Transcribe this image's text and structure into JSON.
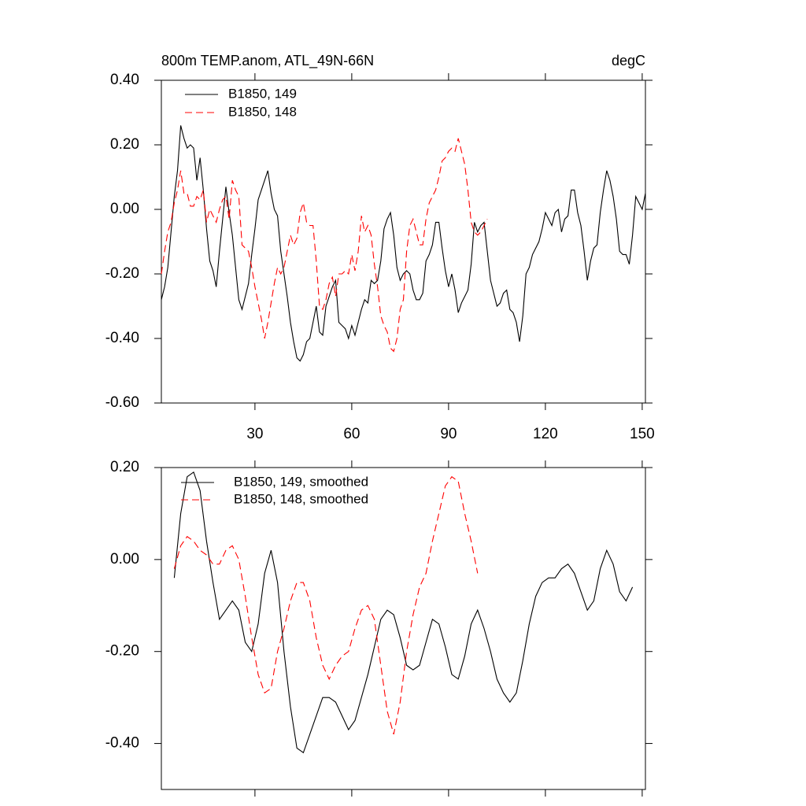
{
  "chart_data": [
    {
      "type": "line",
      "title": "800m TEMP.anom, ATL_49N-66N",
      "units_label": "degC",
      "xlim": [
        1,
        151
      ],
      "ylim": [
        -0.6,
        0.4
      ],
      "xticks": [
        30,
        60,
        90,
        120,
        150
      ],
      "yticks": [
        {
          "value": -0.6,
          "label": "-0.60"
        },
        {
          "value": -0.4,
          "label": "-0.40"
        },
        {
          "value": -0.2,
          "label": "-0.20"
        },
        {
          "value": 0,
          "label": "0.00"
        },
        {
          "value": 0.2,
          "label": "0.20"
        },
        {
          "value": 0.4,
          "label": "0.40"
        }
      ],
      "x": [
        1,
        2,
        3,
        4,
        5,
        6,
        7,
        8,
        9,
        10,
        11,
        12,
        13,
        14,
        15,
        16,
        17,
        18,
        19,
        20,
        21,
        22,
        23,
        24,
        25,
        26,
        27,
        28,
        29,
        30,
        31,
        32,
        33,
        34,
        35,
        36,
        37,
        38,
        39,
        40,
        41,
        42,
        43,
        44,
        45,
        46,
        47,
        48,
        49,
        50,
        51,
        52,
        53,
        54,
        55,
        56,
        57,
        58,
        59,
        60,
        61,
        62,
        63,
        64,
        65,
        66,
        67,
        68,
        69,
        70,
        71,
        72,
        73,
        74,
        75,
        76,
        77,
        78,
        79,
        80,
        81,
        82,
        83,
        84,
        85,
        86,
        87,
        88,
        89,
        90,
        91,
        92,
        93,
        94,
        95,
        96,
        97,
        98,
        99,
        100,
        101,
        102,
        103,
        104,
        105,
        106,
        107,
        108,
        109,
        110,
        111,
        112,
        113,
        114,
        115,
        116,
        117,
        118,
        119,
        120,
        121,
        122,
        123,
        124,
        125,
        126,
        127,
        128,
        129,
        130,
        131,
        132,
        133,
        134,
        135,
        136,
        137,
        138,
        139,
        140,
        141,
        142,
        143,
        144,
        145,
        146,
        147,
        148,
        149,
        150,
        151
      ],
      "series": [
        {
          "name": "B1850, 149",
          "color": "#000000",
          "dash": false,
          "values": [
            -0.28,
            -0.24,
            -0.18,
            -0.07,
            0.04,
            0.12,
            0.26,
            0.22,
            0.19,
            0.2,
            0.19,
            0.09,
            0.16,
            0.06,
            -0.06,
            -0.16,
            -0.19,
            -0.24,
            -0.13,
            -0.03,
            0.07,
            -0.01,
            -0.08,
            -0.18,
            -0.28,
            -0.31,
            -0.27,
            -0.23,
            -0.14,
            -0.06,
            0.03,
            0.06,
            0.09,
            0.12,
            0.05,
            0.0,
            -0.02,
            -0.13,
            -0.2,
            -0.27,
            -0.35,
            -0.41,
            -0.46,
            -0.47,
            -0.45,
            -0.41,
            -0.4,
            -0.35,
            -0.3,
            -0.38,
            -0.39,
            -0.3,
            -0.27,
            -0.24,
            -0.22,
            -0.35,
            -0.36,
            -0.37,
            -0.4,
            -0.36,
            -0.39,
            -0.35,
            -0.31,
            -0.28,
            -0.29,
            -0.22,
            -0.23,
            -0.22,
            -0.16,
            -0.06,
            -0.03,
            -0.01,
            -0.08,
            -0.18,
            -0.22,
            -0.2,
            -0.19,
            -0.2,
            -0.25,
            -0.28,
            -0.28,
            -0.26,
            -0.16,
            -0.14,
            -0.11,
            -0.04,
            -0.04,
            -0.12,
            -0.19,
            -0.24,
            -0.2,
            -0.25,
            -0.32,
            -0.29,
            -0.27,
            -0.25,
            -0.17,
            -0.04,
            -0.07,
            -0.05,
            -0.04,
            -0.13,
            -0.22,
            -0.26,
            -0.3,
            -0.29,
            -0.26,
            -0.25,
            -0.31,
            -0.32,
            -0.35,
            -0.41,
            -0.33,
            -0.2,
            -0.18,
            -0.14,
            -0.12,
            -0.1,
            -0.06,
            -0.01,
            -0.03,
            -0.05,
            -0.01,
            0.0,
            -0.07,
            -0.03,
            -0.02,
            0.06,
            0.06,
            -0.01,
            -0.05,
            -0.13,
            -0.22,
            -0.16,
            -0.12,
            -0.11,
            -0.01,
            0.06,
            0.12,
            0.09,
            0.04,
            -0.03,
            -0.13,
            -0.14,
            -0.14,
            -0.17,
            -0.08,
            0.04,
            0.02,
            0.0,
            0.05
          ]
        },
        {
          "name": "B1850, 148",
          "color": "#ff0000",
          "dash": true,
          "values": [
            -0.2,
            -0.13,
            -0.07,
            -0.04,
            0.02,
            0.06,
            0.12,
            0.05,
            0.05,
            0.01,
            0.01,
            0.04,
            0.03,
            0.06,
            -0.04,
            0.0,
            -0.02,
            -0.04,
            0.0,
            0.03,
            0.04,
            -0.03,
            0.09,
            0.06,
            0.04,
            -0.11,
            -0.12,
            -0.13,
            -0.18,
            -0.24,
            -0.29,
            -0.34,
            -0.4,
            -0.35,
            -0.29,
            -0.23,
            -0.18,
            -0.2,
            -0.18,
            -0.13,
            -0.08,
            -0.11,
            -0.09,
            -0.01,
            0.02,
            -0.04,
            -0.05,
            -0.05,
            -0.16,
            -0.3,
            -0.31,
            -0.28,
            -0.23,
            -0.21,
            -0.27,
            -0.2,
            -0.2,
            -0.19,
            -0.2,
            -0.14,
            -0.19,
            -0.13,
            -0.02,
            -0.07,
            -0.05,
            -0.08,
            -0.17,
            -0.24,
            -0.33,
            -0.36,
            -0.38,
            -0.43,
            -0.44,
            -0.4,
            -0.31,
            -0.28,
            -0.13,
            -0.05,
            -0.03,
            -0.07,
            -0.11,
            -0.11,
            -0.03,
            0.02,
            0.04,
            0.06,
            0.1,
            0.15,
            0.16,
            0.18,
            0.19,
            0.18,
            0.22,
            0.18,
            0.14,
            0.06,
            -0.04,
            -0.07,
            -0.08,
            -0.07,
            -0.05,
            -0.03,
            null,
            null,
            null,
            null,
            null,
            null,
            null,
            null,
            null,
            null,
            null,
            null,
            null,
            null,
            null,
            null,
            null,
            null,
            null,
            null,
            null,
            null,
            null,
            null,
            null,
            null,
            null,
            null,
            null,
            null,
            null,
            null,
            null,
            null,
            null,
            null,
            null,
            null,
            null,
            null,
            null,
            null,
            null,
            null,
            null,
            null,
            null,
            null,
            null
          ]
        }
      ]
    },
    {
      "type": "line",
      "xlim": [
        1,
        151
      ],
      "ylim": [
        -0.5,
        0.2
      ],
      "xticks": [
        30,
        60,
        90,
        120,
        150
      ],
      "yticks": [
        {
          "value": -0.4,
          "label": "-0.40"
        },
        {
          "value": -0.2,
          "label": "-0.20"
        },
        {
          "value": 0,
          "label": "0.00"
        },
        {
          "value": 0.2,
          "label": "0.20"
        }
      ],
      "x": [
        5,
        7,
        9,
        11,
        13,
        15,
        17,
        19,
        21,
        23,
        25,
        27,
        29,
        31,
        33,
        35,
        37,
        39,
        41,
        43,
        45,
        47,
        49,
        51,
        53,
        55,
        57,
        59,
        61,
        63,
        65,
        67,
        69,
        71,
        73,
        75,
        77,
        79,
        81,
        83,
        85,
        87,
        89,
        91,
        93,
        95,
        97,
        99,
        101,
        103,
        105,
        107,
        109,
        111,
        113,
        115,
        117,
        119,
        121,
        123,
        125,
        127,
        129,
        131,
        133,
        135,
        137,
        139,
        141,
        143,
        145,
        147
      ],
      "series": [
        {
          "name": "B1850, 149, smoothed",
          "color": "#000000",
          "dash": false,
          "values": [
            -0.04,
            0.1,
            0.18,
            0.19,
            0.15,
            0.04,
            -0.05,
            -0.13,
            -0.11,
            -0.09,
            -0.11,
            -0.18,
            -0.2,
            -0.14,
            -0.03,
            0.02,
            -0.05,
            -0.2,
            -0.32,
            -0.41,
            -0.42,
            -0.38,
            -0.34,
            -0.3,
            -0.3,
            -0.31,
            -0.34,
            -0.37,
            -0.35,
            -0.3,
            -0.25,
            -0.19,
            -0.13,
            -0.11,
            -0.12,
            -0.17,
            -0.23,
            -0.24,
            -0.23,
            -0.18,
            -0.13,
            -0.14,
            -0.19,
            -0.25,
            -0.26,
            -0.21,
            -0.14,
            -0.11,
            -0.15,
            -0.2,
            -0.26,
            -0.29,
            -0.31,
            -0.29,
            -0.22,
            -0.14,
            -0.08,
            -0.05,
            -0.04,
            -0.04,
            -0.02,
            -0.01,
            -0.03,
            -0.07,
            -0.11,
            -0.09,
            -0.02,
            0.02,
            -0.01,
            -0.07,
            -0.09,
            -0.06
          ]
        },
        {
          "name": "B1850, 148, smoothed",
          "color": "#ff0000",
          "dash": true,
          "values": [
            -0.02,
            0.03,
            0.05,
            0.04,
            0.02,
            0.01,
            -0.01,
            -0.01,
            0.02,
            0.03,
            0.0,
            -0.08,
            -0.17,
            -0.25,
            -0.29,
            -0.28,
            -0.2,
            -0.15,
            -0.09,
            -0.05,
            -0.05,
            -0.09,
            -0.17,
            -0.23,
            -0.26,
            -0.23,
            -0.21,
            -0.2,
            -0.15,
            -0.11,
            -0.1,
            -0.13,
            -0.23,
            -0.33,
            -0.38,
            -0.31,
            -0.2,
            -0.12,
            -0.06,
            -0.03,
            0.04,
            0.1,
            0.16,
            0.18,
            0.17,
            0.1,
            0.04,
            -0.03,
            null,
            null,
            null,
            null,
            null,
            null,
            null,
            null,
            null,
            null,
            null,
            null,
            null,
            null,
            null,
            null,
            null,
            null,
            null,
            null,
            null,
            null,
            null,
            null
          ]
        }
      ]
    }
  ]
}
